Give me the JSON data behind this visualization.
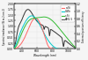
{
  "title": "",
  "xlabel": "Wavelength (nm)",
  "ylabel_left": "Spectral irradiance (W m-2 nm-1)",
  "ylabel_right": "External quantum efficiency",
  "xlim": [
    300,
    1100
  ],
  "ylim_left": [
    0,
    2.0
  ],
  "ylim_right": [
    0,
    1.2
  ],
  "legend": [
    {
      "label": "a-Si",
      "color": "#ff6666"
    },
    {
      "label": "CdTe",
      "color": "#00cccc"
    },
    {
      "label": "c-Si",
      "color": "#33bb33"
    },
    {
      "label": "AM1.5",
      "color": "#555555"
    }
  ],
  "am15_color": "#333333",
  "cdTe_color": "#00cccc",
  "aSi_color": "#ff6666",
  "cSi_color": "#33bb33",
  "background_color": "#f5f5f5",
  "grid_color": "#dddddd",
  "line_width": 0.7,
  "tick_fontsize": 2.2,
  "label_fontsize": 2.2,
  "legend_fontsize": 2.2
}
